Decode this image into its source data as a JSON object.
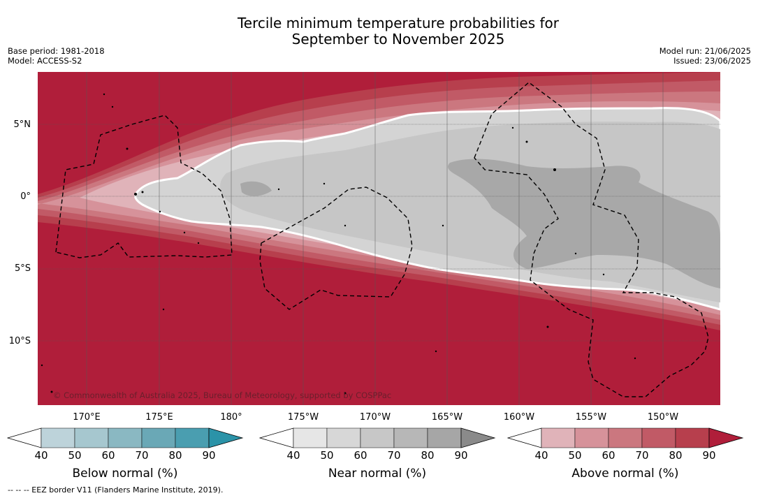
{
  "title_line1": "Tercile minimum temperature probabilities for",
  "title_line2": "September to November 2025",
  "base_period": "Base period: 1981-2018",
  "model": "Model: ACCESS-S2",
  "model_run": "Model run: 21/06/2025",
  "issued": "Issued: 23/06/2025",
  "copyright": "© Commonwealth of Australia 2025, Bureau of Meteorology, supported by COSPPac",
  "lat_labels": [
    "5°N",
    "0°",
    "5°S",
    "10°S"
  ],
  "lon_labels": [
    "170°E",
    "175°E",
    "180°",
    "175°W",
    "170°W",
    "165°W",
    "160°W",
    "155°W",
    "150°W"
  ],
  "colorbars": [
    {
      "title": "Below normal (%)",
      "ticks": [
        "40",
        "50",
        "60",
        "70",
        "80",
        "90"
      ],
      "colors": [
        "#ffffff",
        "#bdd3da",
        "#a6c7cf",
        "#8ab8c2",
        "#6aa8b6",
        "#4a9eb0",
        "#2b93a8"
      ]
    },
    {
      "title": "Near normal (%)",
      "ticks": [
        "40",
        "50",
        "60",
        "70",
        "80",
        "90"
      ],
      "colors": [
        "#ffffff",
        "#e6e6e6",
        "#d7d7d7",
        "#c7c7c7",
        "#b7b7b7",
        "#a6a6a6",
        "#8a8a8a"
      ]
    },
    {
      "title": "Above normal (%)",
      "ticks": [
        "40",
        "50",
        "60",
        "70",
        "80",
        "90"
      ],
      "colors": [
        "#ffffff",
        "#e0b3b9",
        "#d6929a",
        "#cb777f",
        "#c15a66",
        "#b73f4d",
        "#b01e3a"
      ]
    }
  ],
  "footnote": "--  --  -- EEZ border V11 (Flanders Marine Institute, 2019).",
  "colors": {
    "above90": "#b01e3a",
    "above80": "#b73f4d",
    "above70": "#c15a66",
    "above60": "#cb777f",
    "above50": "#d6929a",
    "above40": "#e0b3b9",
    "near50": "#d4d4d4",
    "near60": "#c6c6c6",
    "near70": "#a8a8a8"
  }
}
